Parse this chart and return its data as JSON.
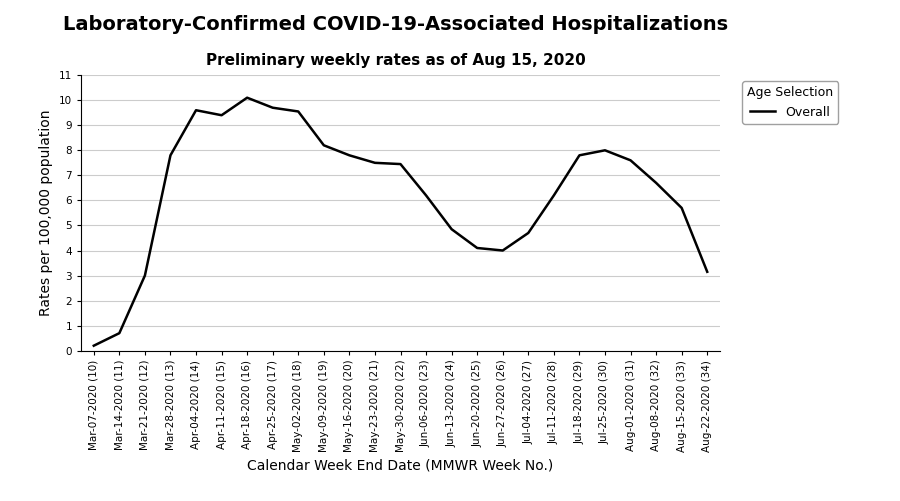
{
  "title": "Laboratory-Confirmed COVID-19-Associated Hospitalizations",
  "subtitle": "Preliminary weekly rates as of Aug 15, 2020",
  "xlabel": "Calendar Week End Date (MMWR Week No.)",
  "ylabel": "Rates per 100,000 population",
  "legend_title": "Age Selection",
  "legend_label": "Overall",
  "ylim": [
    0,
    11
  ],
  "yticks": [
    0,
    1,
    2,
    3,
    4,
    5,
    6,
    7,
    8,
    9,
    10,
    11
  ],
  "x_labels": [
    "Mar-07-2020 (10)",
    "Mar-14-2020 (11)",
    "Mar-21-2020 (12)",
    "Mar-28-2020 (13)",
    "Apr-04-2020 (14)",
    "Apr-11-2020 (15)",
    "Apr-18-2020 (16)",
    "Apr-25-2020 (17)",
    "May-02-2020 (18)",
    "May-09-2020 (19)",
    "May-16-2020 (20)",
    "May-23-2020 (21)",
    "May-30-2020 (22)",
    "Jun-06-2020 (23)",
    "Jun-13-2020 (24)",
    "Jun-20-2020 (25)",
    "Jun-27-2020 (26)",
    "Jul-04-2020 (27)",
    "Jul-11-2020 (28)",
    "Jul-18-2020 (29)",
    "Jul-25-2020 (30)",
    "Aug-01-2020 (31)",
    "Aug-08-2020 (32)",
    "Aug-15-2020 (33)",
    "Aug-22-2020 (34)"
  ],
  "y_values": [
    0.2,
    0.7,
    3.0,
    7.8,
    9.6,
    9.4,
    10.1,
    9.7,
    9.55,
    8.2,
    7.8,
    7.5,
    7.45,
    6.2,
    4.85,
    4.1,
    4.0,
    4.7,
    6.2,
    7.8,
    8.0,
    7.6,
    6.7,
    5.7,
    3.15
  ],
  "line_color": "#000000",
  "line_width": 1.8,
  "grid_color": "#cccccc",
  "bg_color": "#ffffff",
  "legend_box_color": "#ffffff",
  "title_fontsize": 14,
  "subtitle_fontsize": 11,
  "axis_label_fontsize": 10,
  "tick_fontsize": 7.5,
  "cdc_blue": "#1a5fa8"
}
